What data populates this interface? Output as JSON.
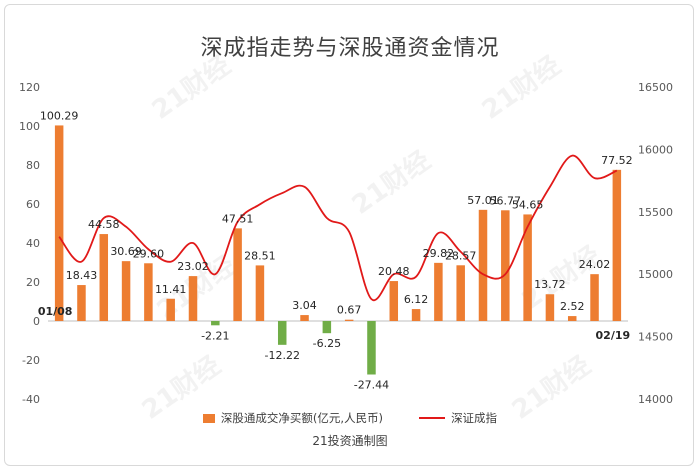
{
  "title": "深成指走势与深股通资金情况",
  "source": "21投资通制图",
  "watermark": "21财经",
  "chart_data": {
    "type": "bar",
    "x_start_label": "01/08",
    "x_end_label": "02/19",
    "y_left": {
      "min": -40,
      "max": 120,
      "ticks": [
        -40,
        -20,
        0,
        20,
        40,
        60,
        80,
        100,
        120
      ]
    },
    "y_right": {
      "min": 14000,
      "max": 16500,
      "ticks": [
        14000,
        14500,
        15000,
        15500,
        16000,
        16500
      ]
    },
    "series": [
      {
        "name": "深股通成交净买额(亿元,人民币)",
        "type": "bar",
        "axis": "left",
        "color_positive": "#ED7D31",
        "color_negative": "#70AD47",
        "values": [
          100.29,
          18.43,
          44.58,
          30.69,
          29.6,
          11.41,
          23.02,
          -2.21,
          47.51,
          28.51,
          -12.22,
          3.04,
          -6.25,
          0.67,
          -27.44,
          20.48,
          6.12,
          29.82,
          28.57,
          57.01,
          56.77,
          54.65,
          13.72,
          2.52,
          24.02,
          77.52
        ],
        "labels": [
          "100.29",
          "18.43",
          "44.58",
          "30.69",
          "29.60",
          "11.41",
          "23.02",
          "-2.21",
          "47.51",
          "28.51",
          "-12.22",
          "3.04",
          "-6.25",
          "0.67",
          "-27.44",
          "20.48",
          "6.12",
          "29.82",
          "28.57",
          "57.01",
          "56.77",
          "54.65",
          "13.72",
          "2.52",
          "24.02",
          "77.52"
        ]
      },
      {
        "name": "深证成指",
        "type": "line",
        "axis": "right",
        "color": "#E11919",
        "values": [
          15300,
          15100,
          15450,
          15380,
          15200,
          15100,
          15250,
          15000,
          15420,
          15560,
          15650,
          15700,
          15450,
          15340,
          14800,
          15000,
          14980,
          15330,
          15180,
          15000,
          15000,
          15380,
          15700,
          15950,
          15770,
          15830
        ]
      }
    ]
  }
}
